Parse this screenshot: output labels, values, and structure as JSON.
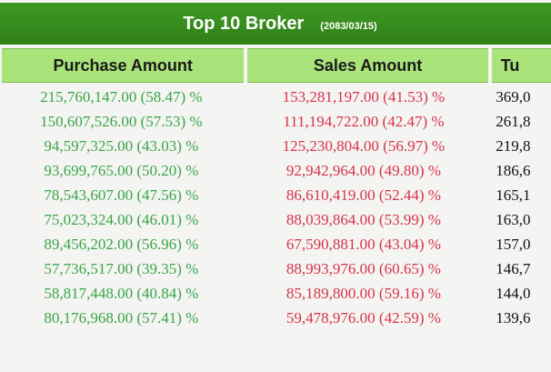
{
  "header": {
    "title": "Top 10 Broker",
    "date": "(2083/03/15)"
  },
  "columns": [
    "Purchase Amount",
    "Sales Amount",
    "Tu"
  ],
  "rows": [
    {
      "purchase": "215,760,147.00 (58.47) %",
      "sales": "153,281,197.00 (41.53) %",
      "turnover": "369,0"
    },
    {
      "purchase": "150,607,526.00 (57.53) %",
      "sales": "111,194,722.00 (42.47) %",
      "turnover": "261,8"
    },
    {
      "purchase": "94,597,325.00 (43.03) %",
      "sales": "125,230,804.00 (56.97) %",
      "turnover": "219,8"
    },
    {
      "purchase": "93,699,765.00 (50.20) %",
      "sales": "92,942,964.00 (49.80) %",
      "turnover": "186,6"
    },
    {
      "purchase": "78,543,607.00 (47.56) %",
      "sales": "86,610,419.00 (52.44) %",
      "turnover": "165,1"
    },
    {
      "purchase": "75,023,324.00 (46.01) %",
      "sales": "88,039,864.00 (53.99) %",
      "turnover": "163,0"
    },
    {
      "purchase": "89,456,202.00 (56.96) %",
      "sales": "67,590,881.00 (43.04) %",
      "turnover": "157,0"
    },
    {
      "purchase": "57,736,517.00 (39.35) %",
      "sales": "88,993,976.00 (60.65) %",
      "turnover": "146,7"
    },
    {
      "purchase": "58,817,448.00 (40.84) %",
      "sales": "85,189,800.00 (59.16) %",
      "turnover": "144,0"
    },
    {
      "purchase": "80,176,968.00 (57.41) %",
      "sales": "59,478,976.00 (42.59) %",
      "turnover": "139,6"
    }
  ],
  "colors": {
    "title_bg": "#2f7f17",
    "header_bg": "#a9e37a",
    "purchase_text": "#3aa547",
    "sales_text": "#d6344a",
    "page_bg": "#f4f4f2"
  }
}
